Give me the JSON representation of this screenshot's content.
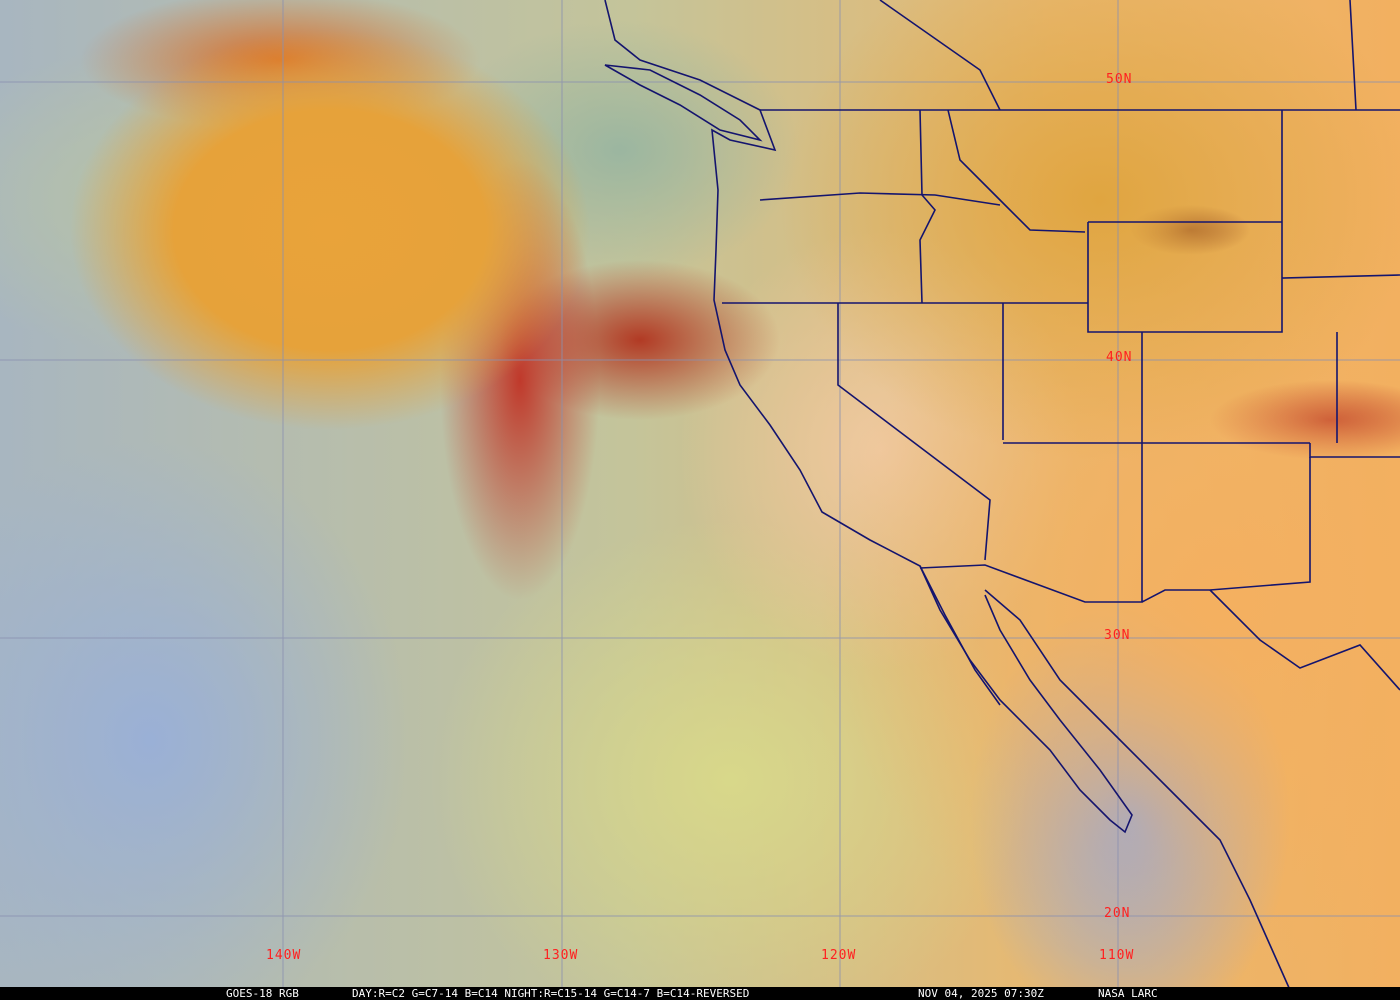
{
  "latitude_labels": [
    "50N",
    "40N",
    "30N",
    "20N"
  ],
  "longitude_labels": [
    "140W",
    "130W",
    "120W",
    "110W"
  ],
  "caption": {
    "satellite": "GOES-18 RGB",
    "recipe": "DAY:R=C2 G=C7-14 B=C14 NIGHT:R=C15-14 G=C14-7 B=C14-REVERSED",
    "timestamp": "NOV 04, 2025 07:30Z",
    "credit": "NASA LARC"
  },
  "colors": {
    "gridline": "#8a90b0",
    "border": "#14146e",
    "label": "#ff2020"
  }
}
